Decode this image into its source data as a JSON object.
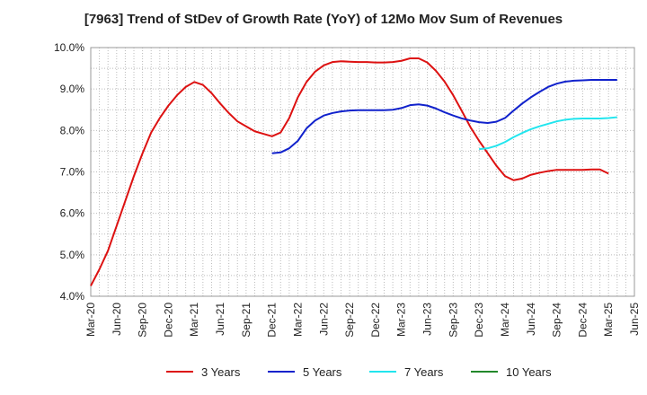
{
  "chart_data": {
    "type": "line",
    "title": "[7963]  Trend of StDev of Growth Rate (YoY) of 12Mo Mov Sum of Revenues",
    "xlabel": "",
    "ylabel": "",
    "ylim": [
      4.0,
      10.0
    ],
    "y_ticks": [
      "4.0%",
      "5.0%",
      "6.0%",
      "7.0%",
      "8.0%",
      "9.0%",
      "10.0%"
    ],
    "grid": true,
    "legend_position": "bottom",
    "x_ticks": [
      "Mar-20",
      "Jun-20",
      "Sep-20",
      "Dec-20",
      "Mar-21",
      "Jun-21",
      "Sep-21",
      "Dec-21",
      "Mar-22",
      "Jun-22",
      "Sep-22",
      "Dec-22",
      "Mar-23",
      "Jun-23",
      "Sep-23",
      "Dec-23",
      "Mar-24",
      "Jun-24",
      "Sep-24",
      "Dec-24",
      "Mar-25",
      "Jun-25"
    ],
    "series": [
      {
        "name": "3 Years",
        "color": "#dd1111",
        "start_month_index": 0,
        "values": [
          4.25,
          4.65,
          5.1,
          5.7,
          6.3,
          6.9,
          7.45,
          7.95,
          8.3,
          8.6,
          8.85,
          9.05,
          9.17,
          9.1,
          8.9,
          8.65,
          8.42,
          8.22,
          8.1,
          7.98,
          7.92,
          7.86,
          7.95,
          8.3,
          8.8,
          9.17,
          9.42,
          9.57,
          9.65,
          9.67,
          9.66,
          9.65,
          9.65,
          9.64,
          9.64,
          9.65,
          9.68,
          9.74,
          9.74,
          9.64,
          9.44,
          9.18,
          8.85,
          8.47,
          8.08,
          7.75,
          7.45,
          7.15,
          6.9,
          6.8,
          6.84,
          6.93,
          6.98,
          7.02,
          7.05,
          7.05,
          7.05,
          7.05,
          7.06,
          7.06,
          6.96
        ]
      },
      {
        "name": "5 Years",
        "color": "#1122cc",
        "start_month_index": 21,
        "values": [
          7.45,
          7.47,
          7.57,
          7.75,
          8.05,
          8.24,
          8.36,
          8.42,
          8.46,
          8.48,
          8.49,
          8.49,
          8.49,
          8.49,
          8.5,
          8.54,
          8.61,
          8.63,
          8.6,
          8.53,
          8.44,
          8.36,
          8.29,
          8.24,
          8.2,
          8.18,
          8.21,
          8.3,
          8.48,
          8.65,
          8.8,
          8.93,
          9.05,
          9.13,
          9.18,
          9.2,
          9.21,
          9.22,
          9.22,
          9.22,
          9.22
        ]
      },
      {
        "name": "7 Years",
        "color": "#22e5ee",
        "start_month_index": 45,
        "values": [
          7.55,
          7.57,
          7.63,
          7.72,
          7.84,
          7.94,
          8.03,
          8.1,
          8.16,
          8.22,
          8.26,
          8.28,
          8.29,
          8.29,
          8.29,
          8.3,
          8.32
        ]
      },
      {
        "name": "10 Years",
        "color": "#22882a",
        "start_month_index": 0,
        "values": []
      }
    ]
  }
}
